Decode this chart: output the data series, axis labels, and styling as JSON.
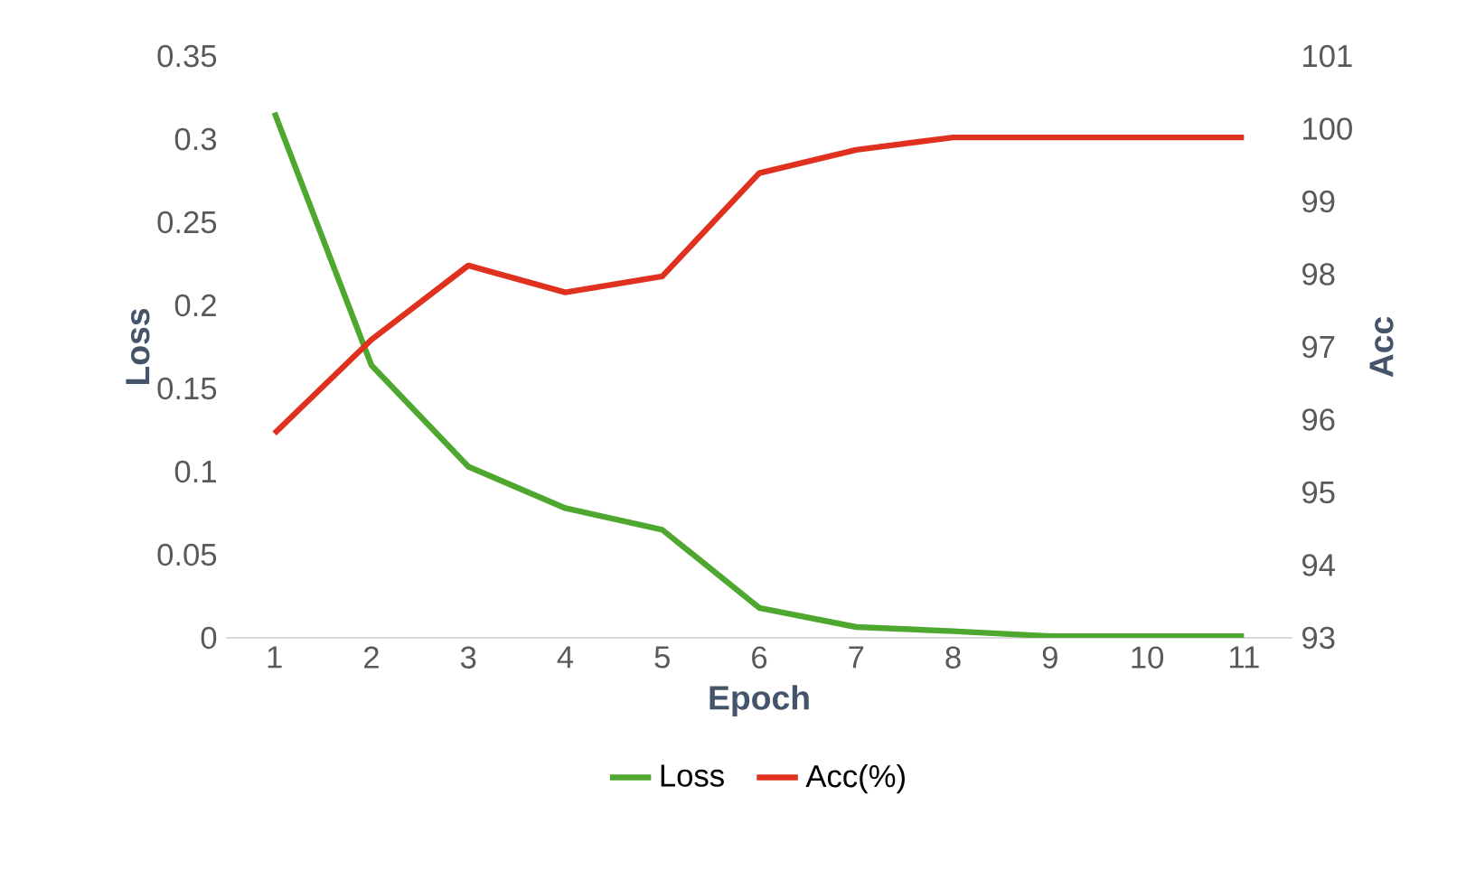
{
  "chart_data": {
    "type": "line",
    "xlabel": "Epoch",
    "ylabel": "Loss",
    "y2label": "Acc",
    "categories": [
      "1",
      "2",
      "3",
      "4",
      "5",
      "6",
      "7",
      "8",
      "9",
      "10",
      "11"
    ],
    "series": [
      {
        "name": "Loss",
        "color": "#4ea72e",
        "values": [
          0.316,
          0.164,
          0.103,
          0.078,
          0.065,
          0.018,
          0.0065,
          0.004,
          0.001,
          0.001,
          0.001
        ]
      },
      {
        "name": "Acc(%)",
        "color": "#e0301e",
        "axis": "y2",
        "values": [
          95.81,
          97.1,
          98.12,
          97.75,
          97.97,
          99.39,
          99.71,
          99.88,
          99.88,
          99.88,
          99.88
        ]
      }
    ],
    "ylim": [
      0,
      0.35
    ],
    "yticks": [
      0,
      0.05,
      0.1,
      0.15,
      0.2,
      0.25,
      0.3,
      0.35
    ],
    "y2lim": [
      93,
      101
    ],
    "y2ticks": [
      93,
      94,
      95,
      96,
      97,
      98,
      99,
      100,
      101
    ],
    "legend": "bottom"
  }
}
